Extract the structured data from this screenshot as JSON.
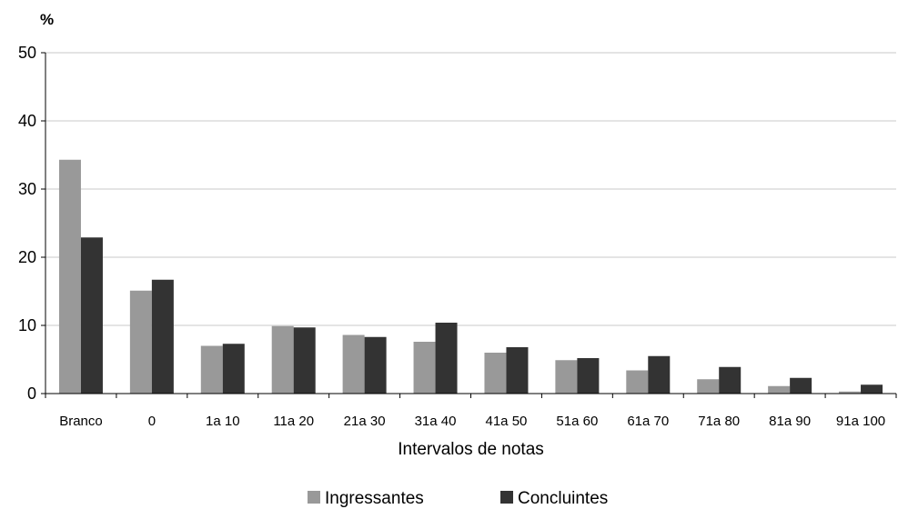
{
  "chart_data": {
    "type": "bar",
    "unit_label": "%",
    "xlabel": "Intervalos de notas",
    "ylabel": "",
    "ylim": [
      0,
      50
    ],
    "yticks": [
      0,
      10,
      20,
      30,
      40,
      50
    ],
    "grid": true,
    "legend_position": "bottom",
    "categories": [
      "Branco",
      "0",
      "1a 10",
      "11a 20",
      "21a 30",
      "31a 40",
      "41a 50",
      "51a 60",
      "61a 70",
      "71a 80",
      "81a 90",
      "91a 100"
    ],
    "series": [
      {
        "name": "Ingressantes",
        "color": "#999999",
        "values": [
          34.3,
          15.1,
          7.0,
          9.9,
          8.6,
          7.6,
          6.0,
          4.9,
          3.4,
          2.1,
          1.1,
          0.3
        ]
      },
      {
        "name": "Concluintes",
        "color": "#333333",
        "values": [
          22.9,
          16.7,
          7.3,
          9.7,
          8.3,
          10.4,
          6.8,
          5.2,
          5.5,
          3.9,
          2.3,
          1.3
        ]
      }
    ]
  }
}
